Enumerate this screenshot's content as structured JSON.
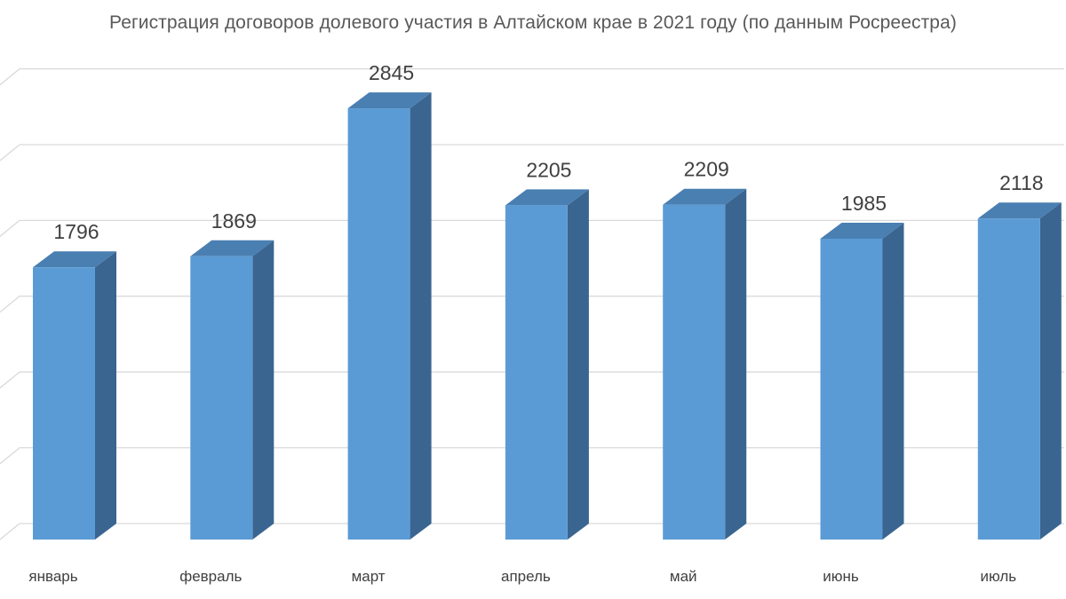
{
  "chart_data": {
    "type": "bar",
    "title": "Регистрация договоров долевого участия в Алтайском крае в 2021 году (по данным Росреестра)",
    "categories": [
      "январь",
      "февраль",
      "март",
      "апрель",
      "май",
      "июнь",
      "июль"
    ],
    "values": [
      1796,
      1869,
      2845,
      2205,
      2209,
      1985,
      2118
    ],
    "xlabel": "",
    "ylabel": "",
    "ylim": [
      0,
      3000
    ],
    "grid": true,
    "legend": "none",
    "style": "3d-column"
  },
  "colors": {
    "bar_front": "#5b9bd5",
    "bar_side": "#3a6590",
    "bar_top": "#4a7fb2",
    "grid": "#d9d9d9",
    "text": "#404040"
  }
}
